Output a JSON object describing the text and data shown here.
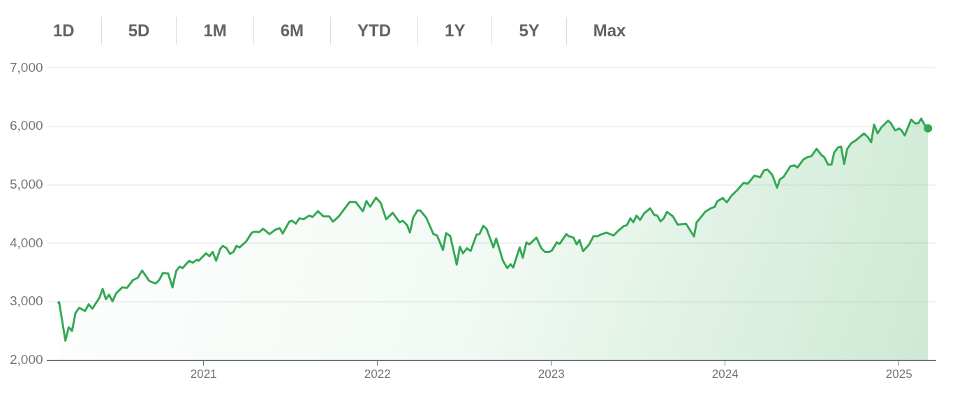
{
  "chart_data": {
    "type": "area",
    "color": "#34a853",
    "grid": "y",
    "annotations": [
      "1D",
      "5D",
      "1M",
      "6M",
      "YTD",
      "1Y",
      "5Y",
      "Max"
    ],
    "xlim": [
      2020.1,
      2025.21
    ],
    "xticks": [
      2021,
      2022,
      2023,
      2024,
      2025
    ],
    "ylim": [
      2000,
      7000
    ],
    "yticks": [
      {
        "value": 2000,
        "label": "2,000"
      },
      {
        "value": 3000,
        "label": "3,000"
      },
      {
        "value": 4000,
        "label": "4,000"
      },
      {
        "value": 5000,
        "label": "5,000"
      },
      {
        "value": 6000,
        "label": "6,000"
      },
      {
        "value": 7000,
        "label": "7,000"
      }
    ],
    "x": [
      2020.16,
      2020.169,
      2020.205,
      2020.224,
      2020.243,
      2020.263,
      2020.284,
      2020.318,
      2020.339,
      2020.36,
      2020.401,
      2020.419,
      2020.438,
      2020.456,
      2020.476,
      2020.497,
      2020.532,
      2020.559,
      2020.594,
      2020.621,
      2020.646,
      2020.687,
      2020.724,
      2020.745,
      2020.766,
      2020.796,
      2020.821,
      2020.842,
      2020.862,
      2020.879,
      2020.917,
      2020.938,
      2020.959,
      2020.972,
      2021.014,
      2021.034,
      2021.052,
      2021.072,
      2021.096,
      2021.11,
      2021.131,
      2021.152,
      2021.172,
      2021.189,
      2021.207,
      2021.245,
      2021.278,
      2021.296,
      2021.321,
      2021.342,
      2021.379,
      2021.413,
      2021.438,
      2021.455,
      2021.493,
      2021.51,
      2021.53,
      2021.551,
      2021.576,
      2021.606,
      2021.627,
      2021.658,
      2021.689,
      2021.723,
      2021.744,
      2021.778,
      2021.84,
      2021.875,
      2021.916,
      2021.937,
      2021.958,
      2021.992,
      2022.019,
      2022.05,
      2022.088,
      2022.127,
      2022.146,
      2022.171,
      2022.187,
      2022.205,
      2022.23,
      2022.246,
      2022.281,
      2022.322,
      2022.343,
      2022.377,
      2022.395,
      2022.419,
      2022.456,
      2022.474,
      2022.492,
      2022.515,
      2022.536,
      2022.57,
      2022.587,
      2022.609,
      2022.628,
      2022.667,
      2022.683,
      2022.722,
      2022.747,
      2022.766,
      2022.781,
      2022.818,
      2022.836,
      2022.857,
      2022.873,
      2022.915,
      2022.942,
      2022.963,
      2022.99,
      2023.004,
      2023.032,
      2023.048,
      2023.087,
      2023.1,
      2023.128,
      2023.146,
      2023.162,
      2023.183,
      2023.218,
      2023.243,
      2023.266,
      2023.284,
      2023.317,
      2023.358,
      2023.383,
      2023.417,
      2023.435,
      2023.455,
      2023.472,
      2023.49,
      2023.511,
      2023.534,
      2023.569,
      2023.592,
      2023.61,
      2023.628,
      2023.647,
      2023.665,
      2023.7,
      2023.727,
      2023.775,
      2023.821,
      2023.836,
      2023.844,
      2023.885,
      2023.92,
      2023.94,
      2023.954,
      2023.986,
      2024.01,
      2024.037,
      2024.072,
      2024.106,
      2024.13,
      2024.168,
      2024.202,
      2024.223,
      2024.244,
      2024.271,
      2024.299,
      2024.315,
      2024.336,
      2024.375,
      2024.4,
      2024.416,
      2024.45,
      2024.474,
      2024.496,
      2024.526,
      2024.554,
      2024.57,
      2024.592,
      2024.612,
      2024.627,
      2024.65,
      2024.667,
      2024.685,
      2024.702,
      2024.726,
      2024.753,
      2024.799,
      2024.822,
      2024.84,
      2024.857,
      2024.877,
      2024.898,
      2024.937,
      2024.953,
      2024.978,
      2025.001,
      2025.015,
      2025.033,
      2025.07,
      2025.094,
      2025.112,
      2025.128,
      2025.146,
      2025.167
    ],
    "values": [
      2977,
      2992,
      2334,
      2562,
      2502,
      2806,
      2897,
      2841,
      2958,
      2882,
      3069,
      3221,
      3044,
      3120,
      3008,
      3145,
      3246,
      3236,
      3373,
      3409,
      3535,
      3357,
      3312,
      3373,
      3494,
      3485,
      3246,
      3525,
      3601,
      3576,
      3702,
      3667,
      3718,
      3702,
      3829,
      3778,
      3854,
      3702,
      3905,
      3956,
      3920,
      3819,
      3854,
      3956,
      3930,
      4032,
      4184,
      4199,
      4193,
      4250,
      4158,
      4234,
      4260,
      4169,
      4371,
      4386,
      4336,
      4427,
      4412,
      4473,
      4452,
      4549,
      4462,
      4462,
      4371,
      4462,
      4706,
      4706,
      4549,
      4725,
      4625,
      4782,
      4690,
      4412,
      4523,
      4361,
      4386,
      4310,
      4184,
      4437,
      4564,
      4564,
      4437,
      4158,
      4133,
      3889,
      4174,
      4123,
      3637,
      3941,
      3829,
      3915,
      3870,
      4148,
      4158,
      4300,
      4245,
      3930,
      4082,
      3702,
      3576,
      3642,
      3585,
      3930,
      3753,
      4017,
      3981,
      4098,
      3920,
      3854,
      3854,
      3880,
      4017,
      3991,
      4158,
      4123,
      4098,
      3981,
      4057,
      3865,
      3981,
      4123,
      4123,
      4148,
      4184,
      4133,
      4209,
      4295,
      4310,
      4427,
      4361,
      4473,
      4402,
      4513,
      4599,
      4488,
      4473,
      4376,
      4427,
      4538,
      4462,
      4321,
      4336,
      4117,
      4361,
      4386,
      4538,
      4604,
      4625,
      4716,
      4777,
      4701,
      4817,
      4918,
      5035,
      5020,
      5157,
      5131,
      5248,
      5263,
      5172,
      4953,
      5096,
      5136,
      5318,
      5333,
      5298,
      5435,
      5476,
      5491,
      5618,
      5511,
      5476,
      5349,
      5349,
      5552,
      5643,
      5653,
      5359,
      5613,
      5714,
      5765,
      5881,
      5815,
      5729,
      6033,
      5881,
      5982,
      6099,
      6058,
      5932,
      5967,
      5932,
      5846,
      6119,
      6048,
      6058,
      6134,
      6033,
      5967
    ]
  }
}
